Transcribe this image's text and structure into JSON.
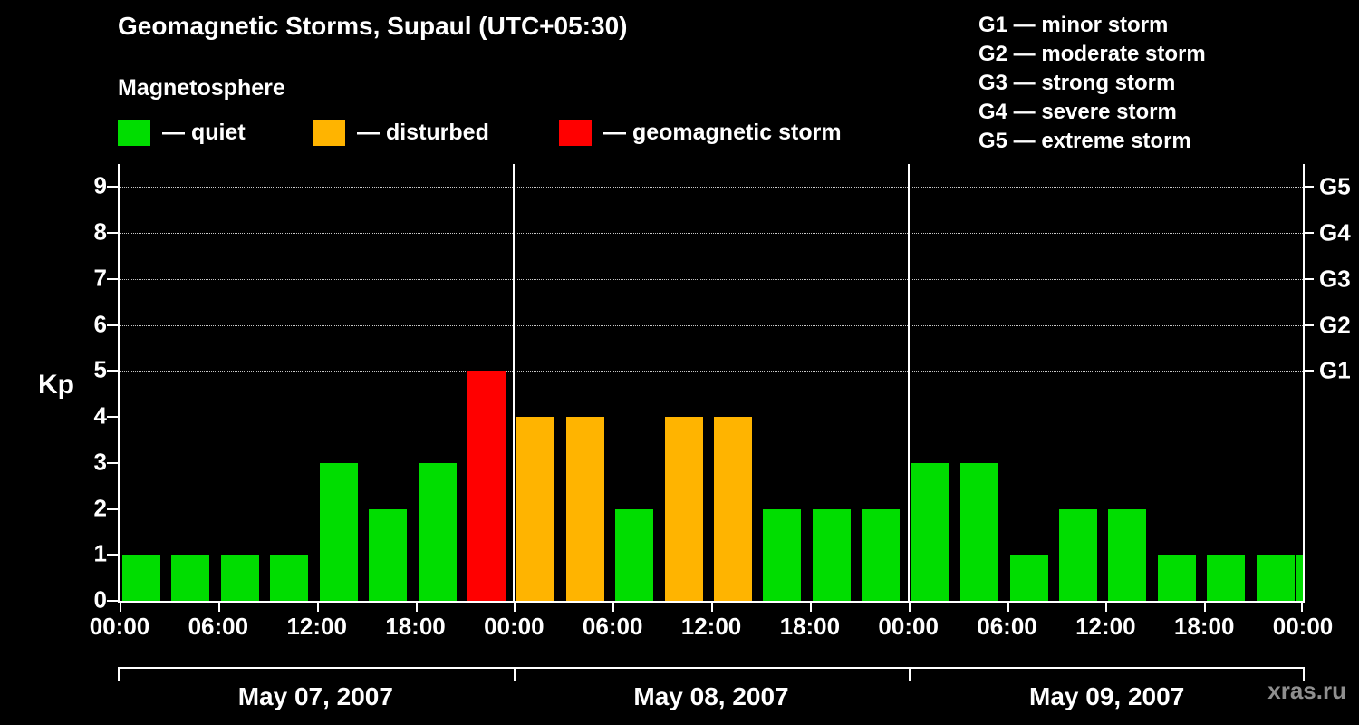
{
  "title": "Geomagnetic Storms, Supaul (UTC+05:30)",
  "subtitle": "Magnetosphere",
  "watermark": "xras.ru",
  "legend": {
    "quiet": "— quiet",
    "disturbed": "— disturbed",
    "storm": "— geomagnetic storm"
  },
  "g_scale": [
    {
      "label": "G1",
      "desc": "G1 — minor storm",
      "kp": 5
    },
    {
      "label": "G2",
      "desc": "G2 — moderate storm",
      "kp": 6
    },
    {
      "label": "G3",
      "desc": "G3 — strong storm",
      "kp": 7
    },
    {
      "label": "G4",
      "desc": "G4 — severe storm",
      "kp": 8
    },
    {
      "label": "G5",
      "desc": "G5 — extreme storm",
      "kp": 9
    }
  ],
  "colors": {
    "quiet": "#00dd00",
    "disturbed": "#ffb400",
    "storm": "#ff0000",
    "background": "#000000",
    "text": "#ffffff",
    "watermark": "#8f8f8f"
  },
  "axis": {
    "kp_label": "Kp",
    "ylim": [
      0,
      9.5
    ],
    "y_ticks": [
      "0",
      "1",
      "2",
      "3",
      "4",
      "5",
      "6",
      "7",
      "8",
      "9"
    ],
    "x_ticks": [
      "00:00",
      "06:00",
      "12:00",
      "18:00",
      "00:00",
      "06:00",
      "12:00",
      "18:00",
      "00:00",
      "06:00",
      "12:00",
      "18:00",
      "00:00"
    ],
    "days": [
      "May 07, 2007",
      "May 08, 2007",
      "May 09, 2007"
    ]
  },
  "chart_data": {
    "type": "bar",
    "title": "Geomagnetic Storms, Supaul (UTC+05:30)",
    "ylabel": "Kp",
    "ylim": [
      0,
      9
    ],
    "grid": "dotted horizontal lines at Kp 5..9 (G1..G5 levels)",
    "legend_position": "top",
    "slot_hours": 3,
    "slot_times": [
      "00:00",
      "03:00",
      "06:00",
      "09:00",
      "12:00",
      "15:00",
      "18:00",
      "21:00"
    ],
    "status_rule": "quiet: Kp<4, disturbed: Kp=4, storm: Kp>=5",
    "series": [
      {
        "day": "May 07, 2007",
        "kp": [
          1,
          1,
          1,
          1,
          3,
          2,
          3,
          5
        ],
        "status": [
          "quiet",
          "quiet",
          "quiet",
          "quiet",
          "quiet",
          "quiet",
          "quiet",
          "storm"
        ]
      },
      {
        "day": "May 08, 2007",
        "kp": [
          4,
          4,
          2,
          4,
          4,
          2,
          2,
          2
        ],
        "status": [
          "disturbed",
          "disturbed",
          "quiet",
          "disturbed",
          "disturbed",
          "quiet",
          "quiet",
          "quiet"
        ]
      },
      {
        "day": "May 09, 2007",
        "kp": [
          3,
          3,
          1,
          2,
          2,
          1,
          1,
          1
        ],
        "status": [
          "quiet",
          "quiet",
          "quiet",
          "quiet",
          "quiet",
          "quiet",
          "quiet",
          "quiet"
        ]
      }
    ],
    "partial_next_bar": {
      "kp": 1,
      "status": "quiet"
    }
  }
}
